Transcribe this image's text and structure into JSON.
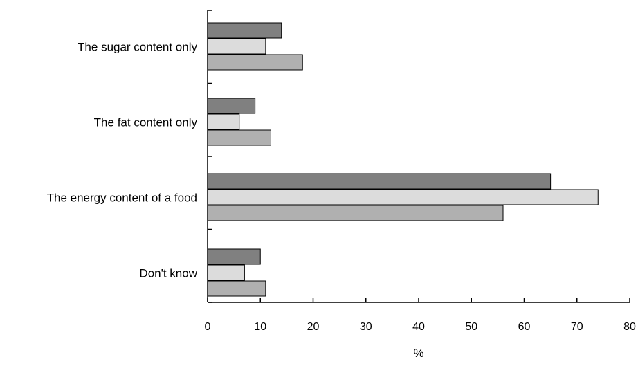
{
  "chart_data": {
    "type": "bar",
    "orientation": "horizontal",
    "categories": [
      "The sugar content only",
      "The fat content only",
      "The energy content of a food",
      "Don't know"
    ],
    "series": [
      {
        "values": [
          14,
          9,
          65,
          10
        ],
        "color": "#808080"
      },
      {
        "values": [
          11,
          6,
          74,
          7
        ],
        "color": "#dcdcdc"
      },
      {
        "values": [
          18,
          12,
          56,
          11
        ],
        "color": "#b0b0b0"
      }
    ],
    "xlabel": "%",
    "xlim": [
      0,
      80
    ],
    "xticks": [
      "0",
      "10",
      "20",
      "30",
      "40",
      "50",
      "60",
      "70",
      "80"
    ],
    "grid": false,
    "legend": "none"
  }
}
